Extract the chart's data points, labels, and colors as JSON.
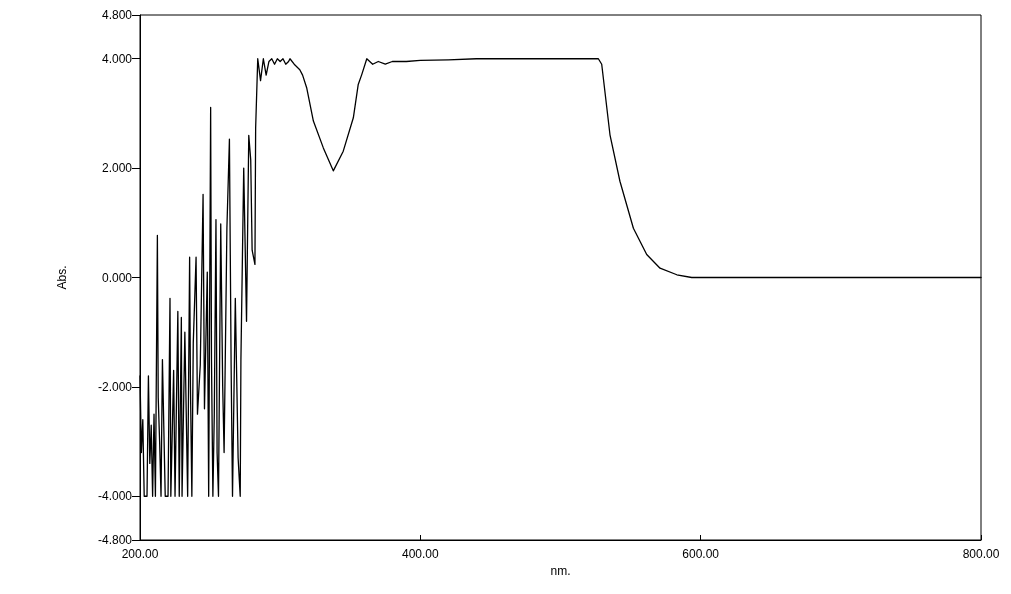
{
  "chart_data": {
    "type": "line",
    "xlabel": "nm.",
    "ylabel": "Abs.",
    "x": [
      200,
      201,
      202,
      203,
      205,
      206,
      207,
      208,
      209,
      210,
      211,
      212.4,
      213,
      214,
      215,
      216,
      218,
      220,
      221.4,
      222,
      224,
      225,
      227,
      228,
      229.5,
      230,
      232,
      234,
      235.4,
      236,
      237,
      238,
      240,
      241,
      243,
      245,
      246,
      248,
      249,
      250.4,
      251,
      252,
      253,
      254.2,
      255,
      256,
      257.6,
      259,
      260,
      262,
      263.8,
      265,
      266,
      268,
      270,
      271.5,
      272,
      274,
      276,
      277.6,
      279,
      280,
      282,
      282.5,
      284,
      286,
      288,
      290,
      292,
      294,
      296,
      298,
      300,
      302,
      304,
      306,
      307,
      310,
      314,
      316,
      318.9,
      323.7,
      330.8,
      337.9,
      345,
      352.2,
      355.7,
      358.2,
      361.8,
      366,
      370,
      375,
      380,
      390,
      400,
      420,
      440,
      460,
      480,
      500,
      520,
      527,
      529.4,
      535.3,
      542.4,
      552,
      561.5,
      571,
      583,
      593.6,
      620,
      700,
      800
    ],
    "series": [
      {
        "color": "#000000",
        "values": [
          -1.8,
          -3.2,
          -2.6,
          -4.0,
          -4.0,
          -1.8,
          -3.4,
          -2.7,
          -4.0,
          -2.5,
          -4.0,
          0.77,
          -2.2,
          -3.0,
          -4.0,
          -1.5,
          -4.0,
          -4.0,
          -0.38,
          -4.0,
          -1.7,
          -4.0,
          -0.62,
          -4.0,
          -0.73,
          -4.0,
          -1.0,
          -4.0,
          0.37,
          -2.0,
          -4.0,
          -1.2,
          0.37,
          -2.5,
          -1.6,
          1.52,
          -2.4,
          0.1,
          -4.0,
          3.11,
          -1.5,
          -4.0,
          -2.5,
          1.06,
          -3.2,
          -4.0,
          0.98,
          -2.0,
          -3.2,
          0.9,
          2.53,
          -1.6,
          -4.0,
          -0.38,
          -3.3,
          -4.0,
          -1.5,
          2.0,
          -0.8,
          2.6,
          2.15,
          0.5,
          0.24,
          2.73,
          4.0,
          3.6,
          4.0,
          3.7,
          3.95,
          4.0,
          3.9,
          4.0,
          3.95,
          4.0,
          3.9,
          3.95,
          4.0,
          3.9,
          3.8,
          3.7,
          3.47,
          2.86,
          2.37,
          1.95,
          2.31,
          2.92,
          3.53,
          3.71,
          4.0,
          3.9,
          3.95,
          3.9,
          3.95,
          3.95,
          3.97,
          3.98,
          4.0,
          4.0,
          4.0,
          4.0,
          4.0,
          4.0,
          3.9,
          2.61,
          1.76,
          0.9,
          0.42,
          0.17,
          0.05,
          0.0,
          0.0,
          0.0,
          0.0
        ]
      }
    ],
    "xlim": [
      200,
      800
    ],
    "xticks": [
      {
        "value": 200,
        "label": "200.00"
      },
      {
        "value": 400,
        "label": "400.00"
      },
      {
        "value": 600,
        "label": "600.00"
      },
      {
        "value": 800,
        "label": "800.00"
      }
    ],
    "ylim": [
      -4.8,
      4.8
    ],
    "yticks": [
      {
        "value": -4.8,
        "label": "-4.800"
      },
      {
        "value": -4,
        "label": "-4.000"
      },
      {
        "value": -2,
        "label": "-2.000"
      },
      {
        "value": 0,
        "label": "0.000"
      },
      {
        "value": 2,
        "label": "2.000"
      },
      {
        "value": 4,
        "label": "4.000"
      },
      {
        "value": 4.8,
        "label": "4.800"
      }
    ],
    "grid": false,
    "marker": "none",
    "line_style": "solid"
  }
}
